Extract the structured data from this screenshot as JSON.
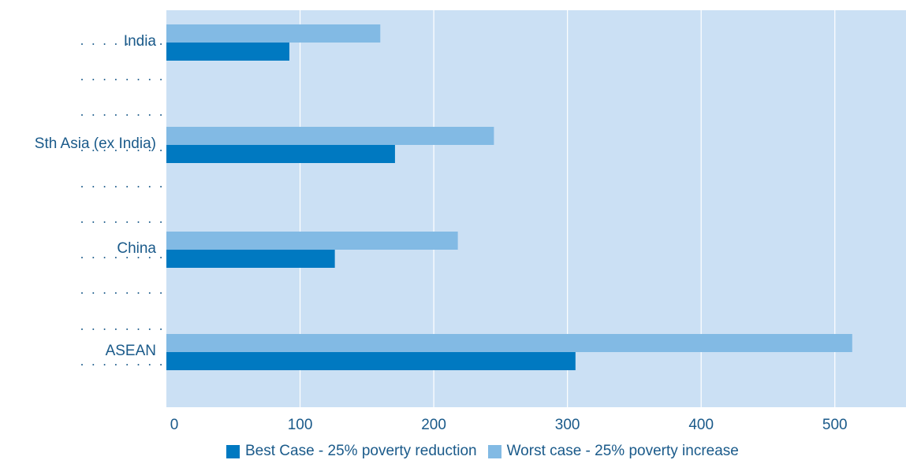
{
  "chart_data": {
    "type": "bar",
    "orientation": "horizontal",
    "title": "",
    "xlabel": "",
    "ylabel": "",
    "categories": [
      "India",
      "Sth Asia (ex India)",
      "China",
      "ASEAN"
    ],
    "series": [
      {
        "name": "Best Case - 25% poverty reduction",
        "color": "#0079c1",
        "values": [
          92,
          171,
          126,
          306
        ]
      },
      {
        "name": "Worst case - 25% poverty increase",
        "color": "#82bae4",
        "values": [
          160,
          245,
          218,
          513
        ]
      }
    ],
    "xlim": [
      0,
      550
    ],
    "xticks": [
      "0",
      "100",
      "200",
      "300",
      "400",
      "500"
    ],
    "grid": true,
    "legend_position": "bottom",
    "colors": {
      "plot_background": "#cbe0f4",
      "gridline": "#ffffff",
      "text": "#1a5a8a",
      "dots": "#1a5a8a"
    }
  }
}
